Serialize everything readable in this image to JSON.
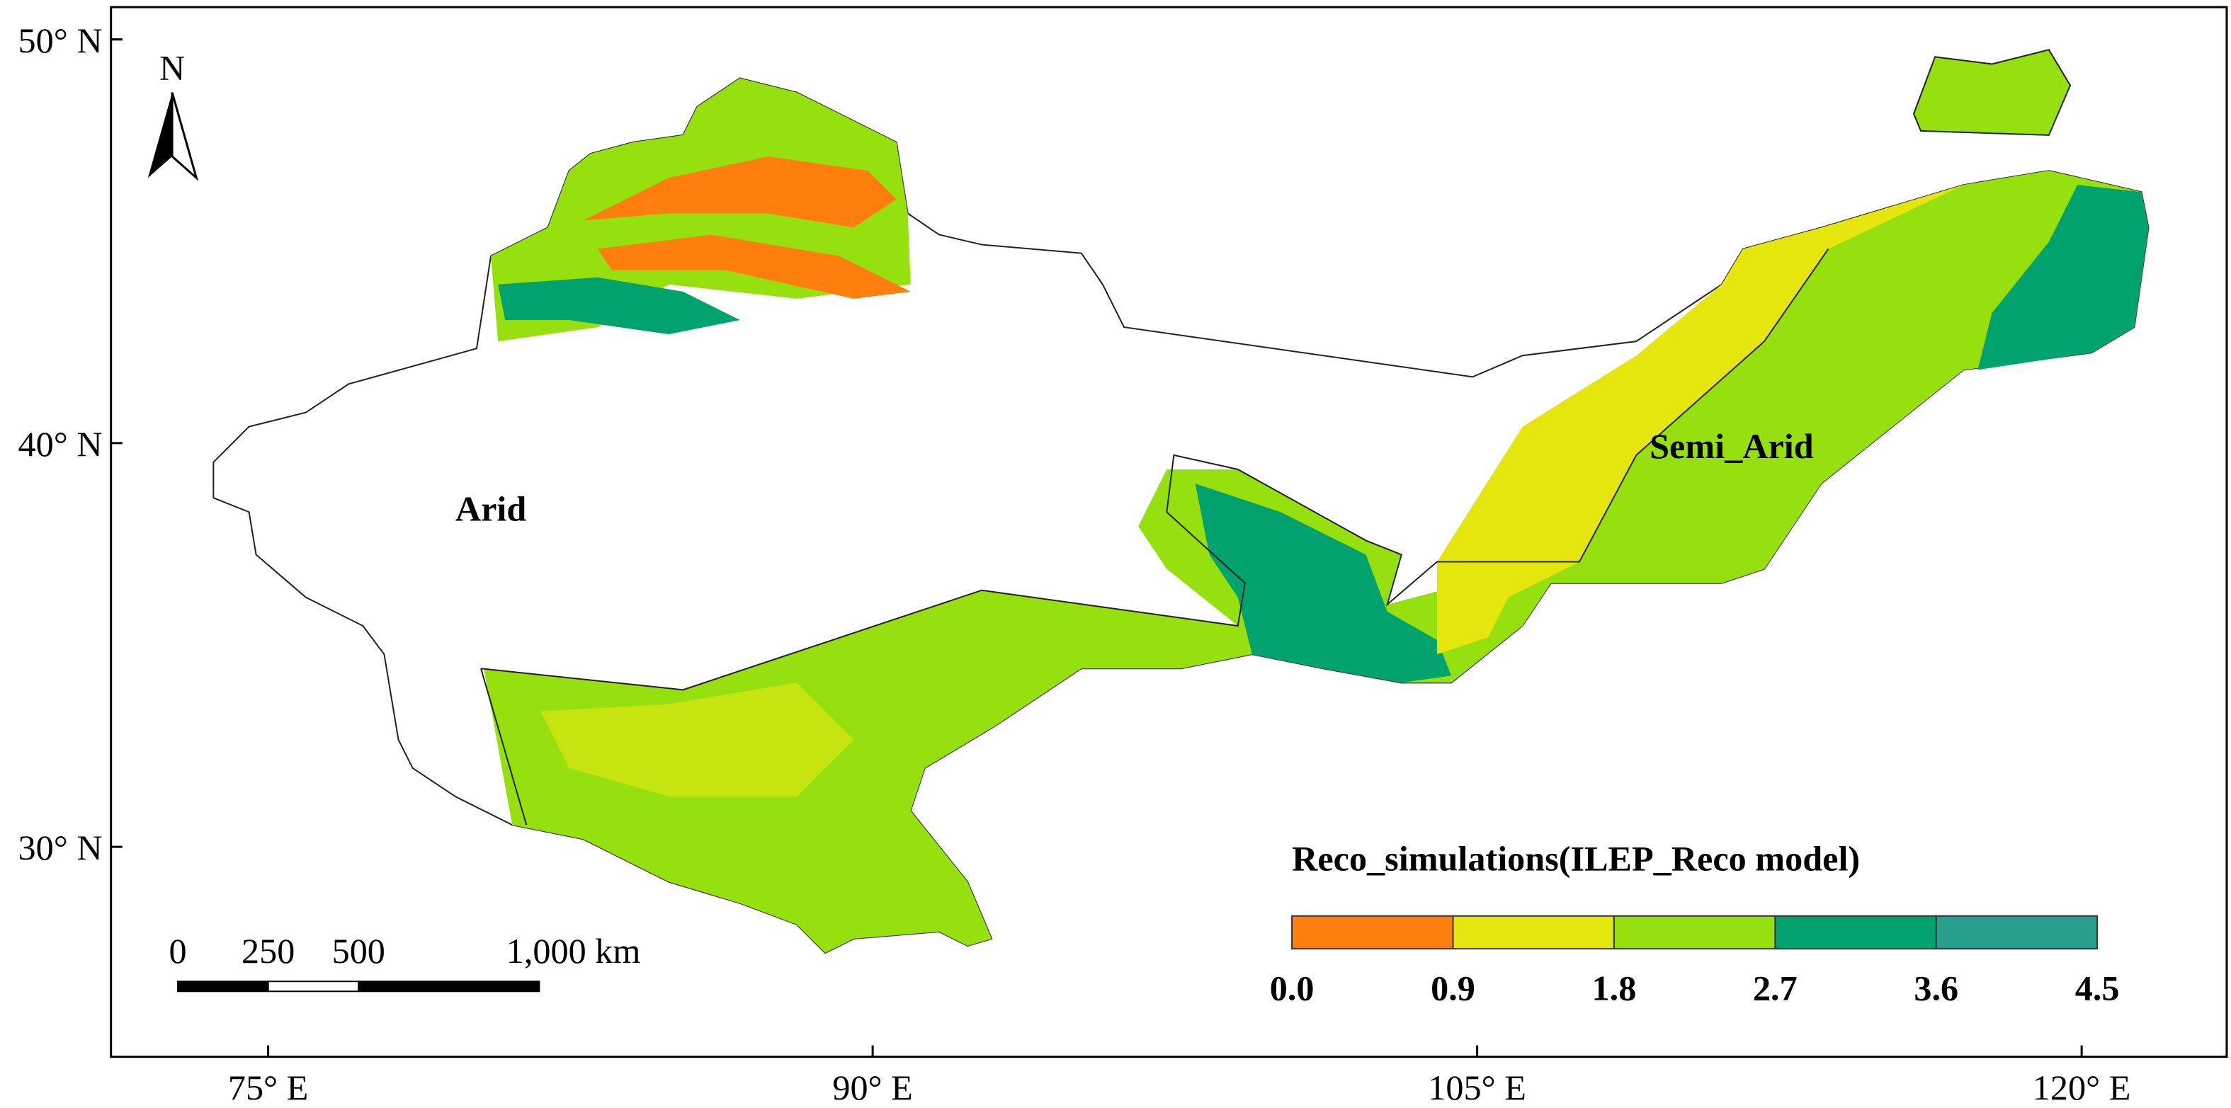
{
  "map": {
    "xlim": [
      71.1,
      123.6
    ],
    "ylim": [
      24.8,
      50.8
    ],
    "xticks": [
      {
        "value": 75,
        "label": "75° E"
      },
      {
        "value": 90,
        "label": "90° E"
      },
      {
        "value": 105,
        "label": "105° E"
      },
      {
        "value": 120,
        "label": "120° E"
      }
    ],
    "yticks": [
      {
        "value": 30,
        "label": "30° N"
      },
      {
        "value": 40,
        "label": "40° N"
      },
      {
        "value": 50,
        "label": "50° N"
      }
    ],
    "north_arrow": "N",
    "regions": [
      "Arid",
      "Semi_Arid"
    ],
    "scale_bar": {
      "ticks": [
        0,
        250,
        500,
        {
          "value": 1000,
          "label": "1,000 km"
        }
      ]
    },
    "legend": {
      "title": "Reco_simulations(ILEP_Reco model)",
      "ticks": [
        {
          "value": 0,
          "label": "0.0"
        },
        0.9,
        1.8,
        2.7,
        3.6,
        4.5
      ],
      "colors": [
        "#ff7f0e",
        "#e6e60f",
        "#96e00f",
        "#00a26e",
        "#26a08c"
      ]
    }
  }
}
